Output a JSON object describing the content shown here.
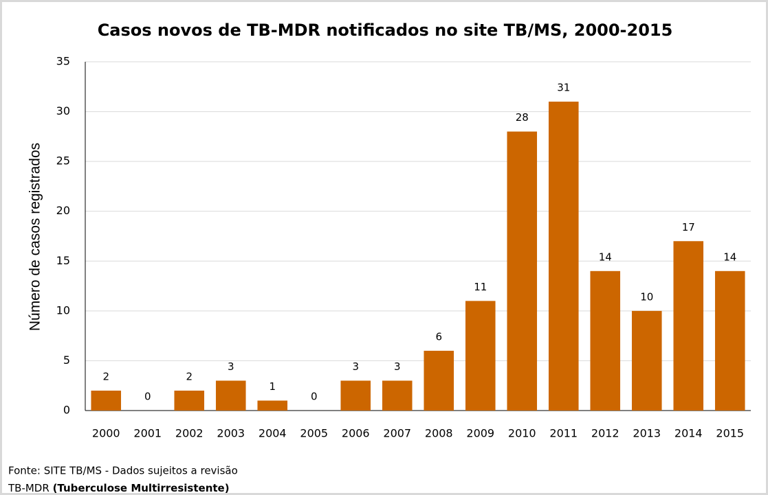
{
  "chart_data": {
    "type": "bar",
    "title": "Casos novos de TB-MDR notificados no site TB/MS, 2000-2015",
    "y_label": "Número de casos registrados",
    "categories": [
      "2000",
      "2001",
      "2002",
      "2003",
      "2004",
      "2005",
      "2006",
      "2007",
      "2008",
      "2009",
      "2010",
      "2011",
      "2012",
      "2013",
      "2014",
      "2015"
    ],
    "values": [
      2,
      0,
      2,
      3,
      1,
      0,
      3,
      3,
      6,
      11,
      28,
      31,
      14,
      10,
      17,
      14
    ],
    "color": "#cc6600",
    "ylim": [
      0,
      35
    ],
    "yticks": [
      0,
      5,
      10,
      15,
      20,
      25,
      30,
      35
    ],
    "grid": true,
    "notes": {
      "source": "Fonte: SITE TB/MS - Dados sujeitos a revisão",
      "abbr": "TB-MDR",
      "abbr_meaning": "(Tuberculose Multirresistente)"
    }
  }
}
